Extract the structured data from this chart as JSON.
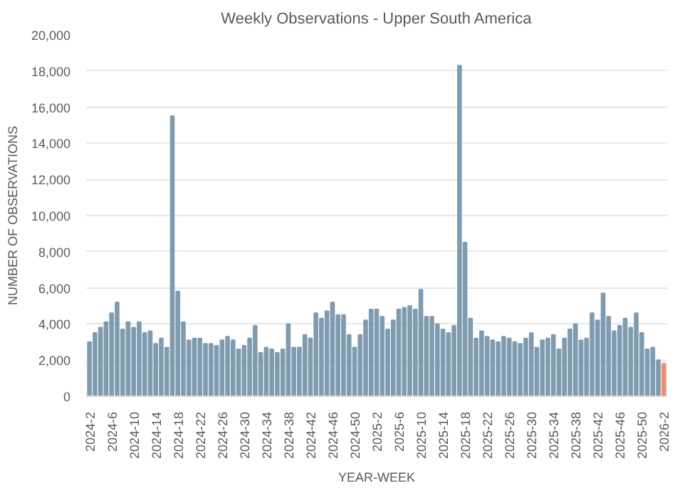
{
  "chart_data": {
    "type": "bar",
    "title": "Weekly Observations - Upper South America",
    "xlabel": "YEAR-WEEK",
    "ylabel": "NUMBER OF OBSERVATIONS",
    "categories": [
      "2024-2",
      null,
      null,
      null,
      "2024-6",
      null,
      null,
      null,
      "2024-10",
      null,
      null,
      null,
      "2024-14",
      null,
      null,
      null,
      "2024-18",
      null,
      null,
      null,
      "2024-22",
      null,
      null,
      null,
      "2024-26",
      null,
      null,
      null,
      "2024-30",
      null,
      null,
      null,
      "2024-34",
      null,
      null,
      null,
      "2024-38",
      null,
      null,
      null,
      "2024-42",
      null,
      null,
      null,
      "2024-46",
      null,
      null,
      null,
      "2024-50",
      null,
      null,
      null,
      "2025-2",
      null,
      null,
      null,
      "2025-6",
      null,
      null,
      null,
      "2025-10",
      null,
      null,
      null,
      "2025-14",
      null,
      null,
      null,
      "2025-18",
      null,
      null,
      null,
      "2025-22",
      null,
      null,
      null,
      "2025-26",
      null,
      null,
      null,
      "2025-30",
      null,
      null,
      null,
      "2025-34",
      null,
      null,
      null,
      "2025-38",
      null,
      null,
      null,
      "2025-42",
      null,
      null,
      null,
      "2025-46",
      null,
      null,
      null,
      "2025-50",
      null,
      null,
      null,
      "2026-2"
    ],
    "values": [
      3000,
      3500,
      3800,
      4100,
      4600,
      5200,
      3700,
      4100,
      3800,
      4100,
      3500,
      3600,
      2900,
      3200,
      2700,
      15500,
      5800,
      4100,
      3100,
      3200,
      3200,
      2900,
      2900,
      2800,
      3100,
      3300,
      3100,
      2600,
      2800,
      3200,
      3900,
      2400,
      2700,
      2600,
      2400,
      2600,
      4000,
      2700,
      2700,
      3400,
      3200,
      4600,
      4300,
      4700,
      5200,
      4500,
      4500,
      3400,
      2700,
      3400,
      4200,
      4800,
      4800,
      4400,
      3700,
      4200,
      4800,
      4900,
      5000,
      4800,
      5900,
      4400,
      4400,
      4000,
      3700,
      3500,
      3900,
      18300,
      8500,
      4300,
      3200,
      3600,
      3300,
      3100,
      3000,
      3300,
      3200,
      3000,
      2900,
      3200,
      3500,
      2700,
      3100,
      3200,
      3400,
      2600,
      3200,
      3700,
      4000,
      3100,
      3200,
      4600,
      4200,
      5700,
      4400,
      3600,
      3900,
      4300,
      3800,
      4600,
      3500,
      2600,
      2700,
      2000,
      1800
    ],
    "colors": [
      "#7f9bb0",
      "#7f9bb0",
      "#7f9bb0",
      "#7f9bb0",
      "#7f9bb0",
      "#7f9bb0",
      "#7f9bb0",
      "#7f9bb0",
      "#7f9bb0",
      "#7f9bb0",
      "#7f9bb0",
      "#7f9bb0",
      "#7f9bb0",
      "#7f9bb0",
      "#7f9bb0",
      "#7f9bb0",
      "#7f9bb0",
      "#7f9bb0",
      "#7f9bb0",
      "#7f9bb0",
      "#7f9bb0",
      "#7f9bb0",
      "#7f9bb0",
      "#7f9bb0",
      "#7f9bb0",
      "#7f9bb0",
      "#7f9bb0",
      "#7f9bb0",
      "#7f9bb0",
      "#7f9bb0",
      "#7f9bb0",
      "#7f9bb0",
      "#7f9bb0",
      "#7f9bb0",
      "#7f9bb0",
      "#7f9bb0",
      "#7f9bb0",
      "#7f9bb0",
      "#7f9bb0",
      "#7f9bb0",
      "#7f9bb0",
      "#7f9bb0",
      "#7f9bb0",
      "#7f9bb0",
      "#7f9bb0",
      "#7f9bb0",
      "#7f9bb0",
      "#7f9bb0",
      "#7f9bb0",
      "#7f9bb0",
      "#7f9bb0",
      "#7f9bb0",
      "#7f9bb0",
      "#7f9bb0",
      "#7f9bb0",
      "#7f9bb0",
      "#7f9bb0",
      "#7f9bb0",
      "#7f9bb0",
      "#7f9bb0",
      "#7f9bb0",
      "#7f9bb0",
      "#7f9bb0",
      "#7f9bb0",
      "#7f9bb0",
      "#7f9bb0",
      "#7f9bb0",
      "#7f9bb0",
      "#7f9bb0",
      "#7f9bb0",
      "#7f9bb0",
      "#7f9bb0",
      "#7f9bb0",
      "#7f9bb0",
      "#7f9bb0",
      "#7f9bb0",
      "#7f9bb0",
      "#7f9bb0",
      "#7f9bb0",
      "#7f9bb0",
      "#7f9bb0",
      "#7f9bb0",
      "#7f9bb0",
      "#7f9bb0",
      "#7f9bb0",
      "#7f9bb0",
      "#7f9bb0",
      "#7f9bb0",
      "#7f9bb0",
      "#7f9bb0",
      "#7f9bb0",
      "#7f9bb0",
      "#7f9bb0",
      "#7f9bb0",
      "#7f9bb0",
      "#7f9bb0",
      "#7f9bb0",
      "#7f9bb0",
      "#7f9bb0",
      "#7f9bb0",
      "#7f9bb0",
      "#7f9bb0",
      "#7f9bb0",
      "#7f9bb0",
      "#e8917a"
    ],
    "ylim": [
      0,
      20000
    ],
    "yticks": [
      {
        "value": 0,
        "label": "0"
      },
      {
        "value": 2000,
        "label": "2,000"
      },
      {
        "value": 4000,
        "label": "4,000"
      },
      {
        "value": 6000,
        "label": "6,000"
      },
      {
        "value": 8000,
        "label": "8,000"
      },
      {
        "value": 10000,
        "label": "10,000"
      },
      {
        "value": 12000,
        "label": "12,000"
      },
      {
        "value": 14000,
        "label": "14,000"
      },
      {
        "value": 16000,
        "label": "16,000"
      },
      {
        "value": 18000,
        "label": "18,000"
      },
      {
        "value": 20000,
        "label": "20,000"
      }
    ],
    "grid": "y"
  }
}
